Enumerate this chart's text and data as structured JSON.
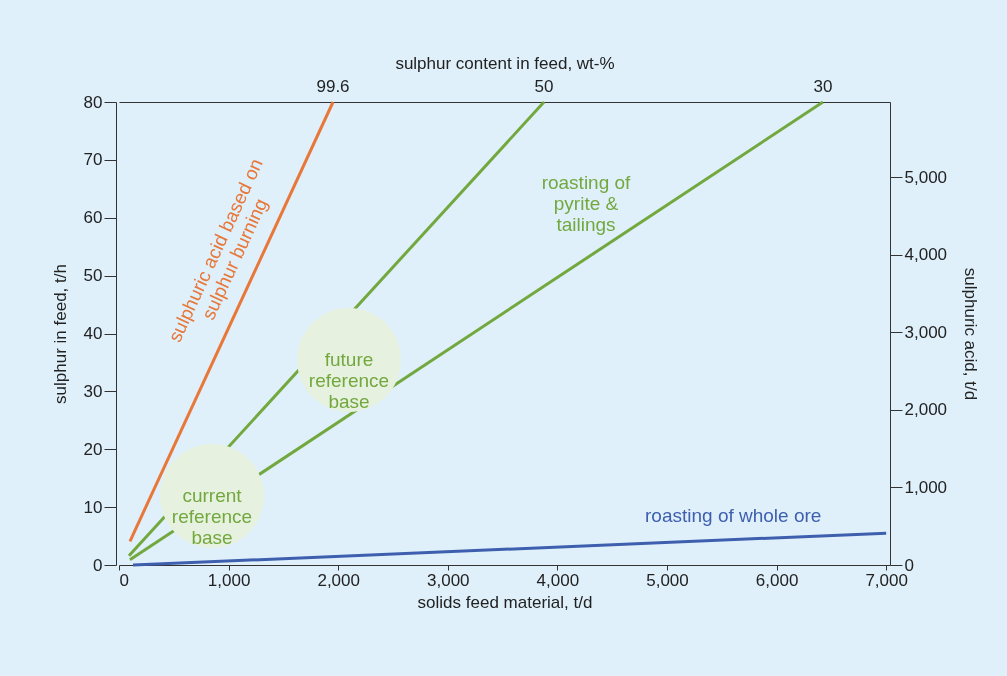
{
  "chart_data": {
    "type": "line",
    "xlabel": "solids feed material, t/d",
    "ylabel": "sulphur in feed, t/h",
    "y2label": "sulphuric acid, t/d",
    "x2label": "sulphur content in feed, wt-%",
    "series": [
      {
        "name": "sulphuric acid based on\nsulphur burning",
        "color": "#e8773a",
        "x": [
          100,
          1953
        ],
        "values": [
          4.1,
          80
        ]
      },
      {
        "name": "roasting of\npyrite &\ntailings",
        "color": "#72a83e",
        "x": [
          91,
          3878
        ],
        "values": [
          1.6,
          80
        ]
      },
      {
        "color": "#72a83e",
        "x": [
          100,
          6423
        ],
        "values": [
          0.9,
          80
        ]
      },
      {
        "name": "roasting of whole ore",
        "color": "#3e5fae",
        "x": [
          128,
          7000
        ],
        "values": [
          0,
          5.5
        ]
      }
    ],
    "xlim": [
      0,
      7035
    ],
    "xticks": [
      0,
      {
        "value": 1000,
        "label": "1,000"
      },
      {
        "value": 2000,
        "label": "2,000"
      },
      {
        "value": 3000,
        "label": "3,000"
      },
      {
        "value": 4000,
        "label": "4,000"
      },
      {
        "value": 5000,
        "label": "5,000"
      },
      {
        "value": 6000,
        "label": "6,000"
      },
      {
        "value": 7000,
        "label": "7,000"
      }
    ],
    "ylim": [
      0,
      80
    ],
    "yticks": [
      0,
      10,
      20,
      30,
      40,
      50,
      60,
      70,
      80
    ],
    "y2lim": [
      0,
      5970
    ],
    "y2ticks": [
      0,
      {
        "value": 1000,
        "label": "1,000"
      },
      {
        "value": 2000,
        "label": "2,000"
      },
      {
        "value": 3000,
        "label": "3,000"
      },
      {
        "value": 4000,
        "label": "4,000"
      },
      {
        "value": 5000,
        "label": "5,000"
      }
    ],
    "annotations": [
      "current\nreference\nbase",
      "future\nreference\nbase",
      {
        "text": "99.6",
        "x": 1953,
        "y": 80
      },
      {
        "text": "50",
        "x": 3878,
        "y": 80
      },
      {
        "text": "30",
        "x": 6423,
        "y": 80
      }
    ],
    "grid": false,
    "legend": false,
    "line_style": "solid",
    "marker": "none"
  }
}
